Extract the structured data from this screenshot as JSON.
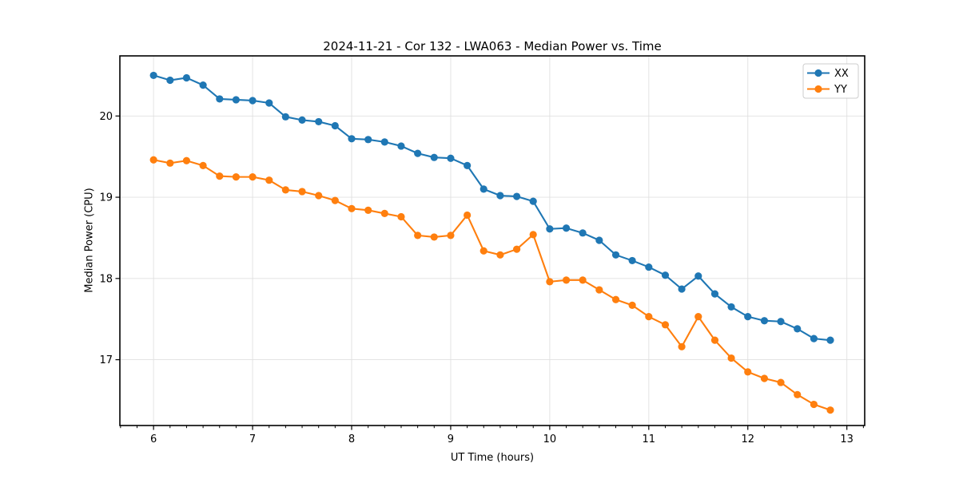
{
  "chart_data": {
    "type": "line",
    "title": "2024-11-21 - Cor 132 - LWA063 - Median Power vs. Time",
    "xlabel": "UT Time (hours)",
    "ylabel": "Median Power (CPU)",
    "xlim": [
      5.66,
      13.18
    ],
    "ylim": [
      16.19,
      20.74
    ],
    "xticks": [
      6,
      7,
      8,
      9,
      10,
      11,
      12,
      13
    ],
    "yticks": [
      17,
      18,
      19,
      20
    ],
    "x_minor_per_major": 6,
    "grid": true,
    "grid_color": "#e0e0e0",
    "background": "#ffffff",
    "legend": {
      "position": "upper-right",
      "entries": [
        "XX",
        "YY"
      ],
      "border_color": "#cccccc"
    },
    "x": [
      6.0,
      6.167,
      6.333,
      6.5,
      6.667,
      6.833,
      7.0,
      7.167,
      7.333,
      7.5,
      7.667,
      7.833,
      8.0,
      8.167,
      8.333,
      8.5,
      8.667,
      8.833,
      9.0,
      9.167,
      9.333,
      9.5,
      9.667,
      9.833,
      10.0,
      10.167,
      10.333,
      10.5,
      10.667,
      10.833,
      11.0,
      11.167,
      11.333,
      11.5,
      11.667,
      11.833,
      12.0,
      12.167,
      12.333,
      12.5,
      12.667,
      12.833
    ],
    "series": [
      {
        "name": "XX",
        "color": "#1f77b4",
        "values": [
          20.5,
          20.44,
          20.47,
          20.38,
          20.21,
          20.2,
          20.19,
          20.16,
          19.99,
          19.95,
          19.93,
          19.88,
          19.72,
          19.71,
          19.68,
          19.63,
          19.54,
          19.49,
          19.48,
          19.39,
          19.1,
          19.02,
          19.01,
          18.95,
          18.61,
          18.62,
          18.56,
          18.47,
          18.29,
          18.22,
          18.14,
          18.04,
          17.87,
          18.03,
          17.81,
          17.65,
          17.53,
          17.48,
          17.47,
          17.38,
          17.26,
          17.24
        ]
      },
      {
        "name": "YY",
        "color": "#ff7f0e",
        "values": [
          19.46,
          19.42,
          19.45,
          19.39,
          19.26,
          19.25,
          19.25,
          19.21,
          19.09,
          19.07,
          19.02,
          18.96,
          18.86,
          18.84,
          18.8,
          18.76,
          18.53,
          18.51,
          18.53,
          18.78,
          18.34,
          18.29,
          18.36,
          18.54,
          17.96,
          17.98,
          17.98,
          17.86,
          17.74,
          17.67,
          17.53,
          17.43,
          17.16,
          17.53,
          17.24,
          17.02,
          16.85,
          16.77,
          16.72,
          16.57,
          16.45,
          16.38
        ]
      }
    ]
  }
}
